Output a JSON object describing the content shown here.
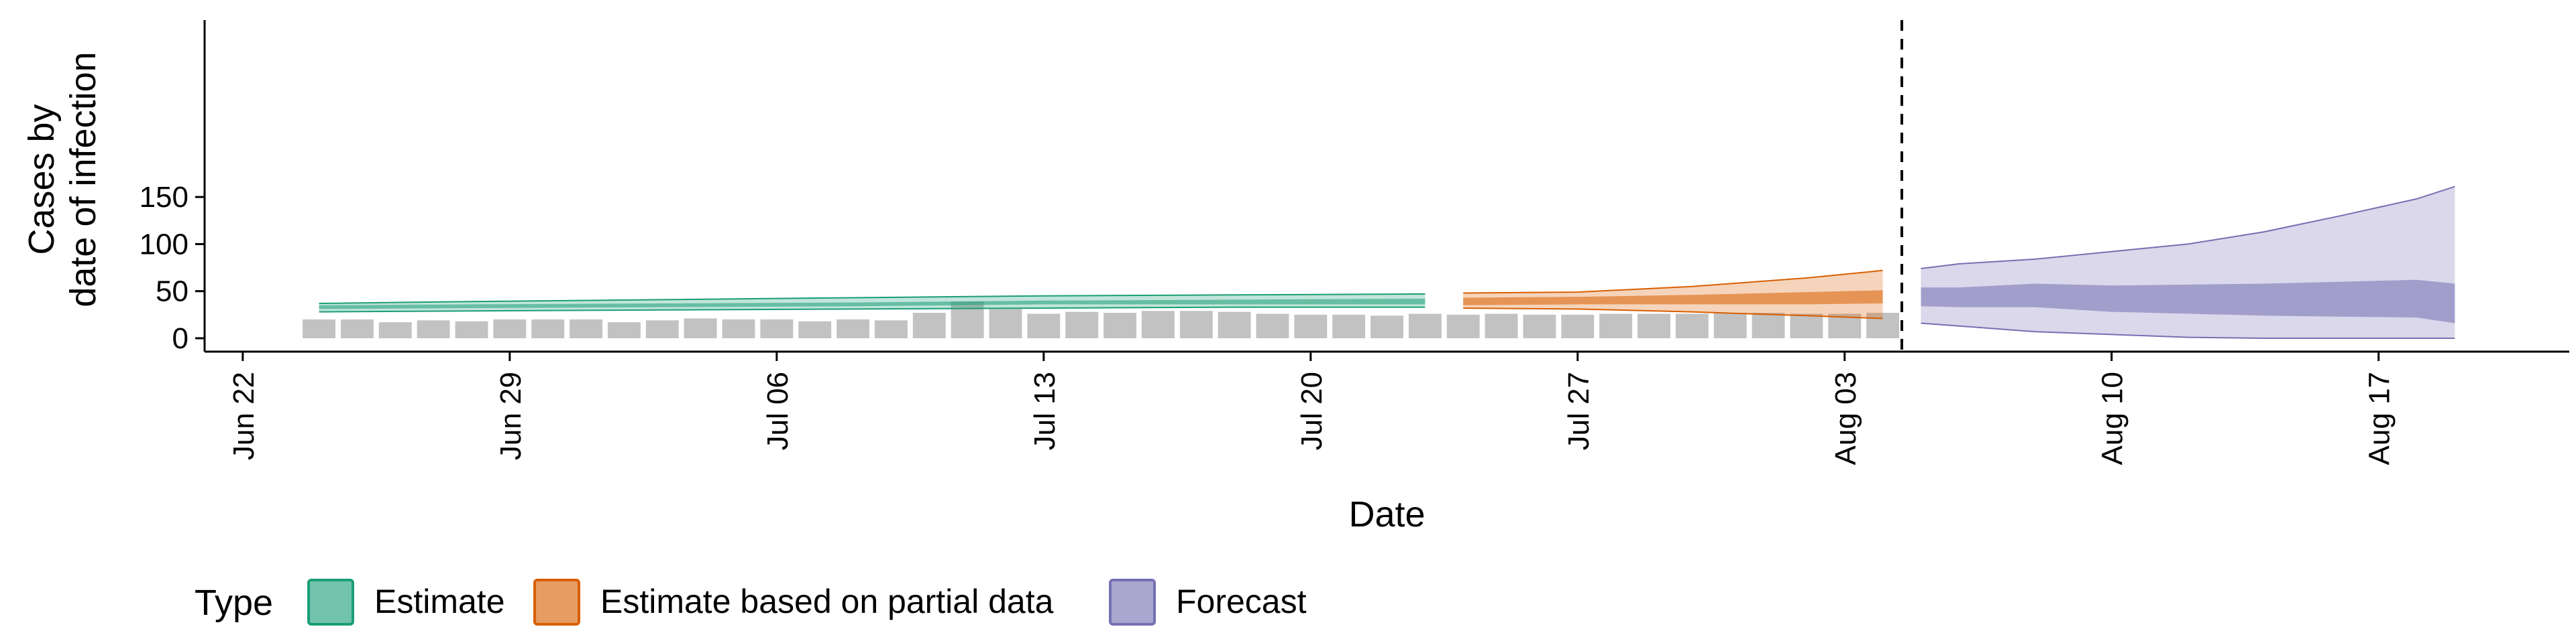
{
  "chart_data": {
    "type": "area",
    "title": "",
    "xlabel": "Date",
    "ylabel_lines": [
      "Cases by",
      "date of infection"
    ],
    "ylim": [
      0,
      165
    ],
    "yticks": [
      0,
      50,
      100,
      150
    ],
    "xticks": [
      "Jun 22",
      "Jun 29",
      "Jul 06",
      "Jul 13",
      "Jul 20",
      "Jul 27",
      "Aug 03",
      "Aug 10",
      "Aug 17"
    ],
    "xtick_dates": [
      "2020-06-22",
      "2020-06-29",
      "2020-07-06",
      "2020-07-13",
      "2020-07-20",
      "2020-07-27",
      "2020-08-03",
      "2020-08-10",
      "2020-08-17"
    ],
    "xlim": [
      "2020-06-21",
      "2020-08-22"
    ],
    "forecast_cutoff": "2020-08-05",
    "grid": false,
    "legend": {
      "title": "Type",
      "position": "bottom",
      "entries": [
        "Estimate",
        "Estimate based on partial data",
        "Forecast"
      ]
    },
    "colors": {
      "estimate": "#1b9e77",
      "partial": "#d95f02",
      "forecast": "#7570b3",
      "bars": "#bfbfbf",
      "cutoff_line": "#000000"
    },
    "observed_cases": {
      "dates": [
        "2020-06-24",
        "2020-06-25",
        "2020-06-26",
        "2020-06-27",
        "2020-06-28",
        "2020-06-29",
        "2020-06-30",
        "2020-07-01",
        "2020-07-02",
        "2020-07-03",
        "2020-07-04",
        "2020-07-05",
        "2020-07-06",
        "2020-07-07",
        "2020-07-08",
        "2020-07-09",
        "2020-07-10",
        "2020-07-11",
        "2020-07-12",
        "2020-07-13",
        "2020-07-14",
        "2020-07-15",
        "2020-07-16",
        "2020-07-17",
        "2020-07-18",
        "2020-07-19",
        "2020-07-20",
        "2020-07-21",
        "2020-07-22",
        "2020-07-23",
        "2020-07-24",
        "2020-07-25",
        "2020-07-26",
        "2020-07-27",
        "2020-07-28",
        "2020-07-29",
        "2020-07-30",
        "2020-07-31",
        "2020-08-01",
        "2020-08-02",
        "2020-08-03",
        "2020-08-04"
      ],
      "values": [
        20,
        20,
        17,
        19,
        18,
        20,
        20,
        20,
        17,
        19,
        21,
        20,
        20,
        18,
        20,
        19,
        27,
        39,
        31,
        26,
        28,
        27,
        29,
        29,
        28,
        26,
        25,
        25,
        24,
        26,
        25,
        26,
        25,
        25,
        26,
        26,
        26,
        27,
        27,
        26,
        26,
        27
      ]
    },
    "series": [
      {
        "name": "Estimate",
        "dates": [
          "2020-06-24",
          "2020-06-28",
          "2020-07-03",
          "2020-07-08",
          "2020-07-13",
          "2020-07-18",
          "2020-07-23"
        ],
        "median": [
          33,
          34,
          35,
          36,
          38,
          38,
          39
        ],
        "lower50": [
          31,
          32,
          33,
          34,
          36,
          36,
          36
        ],
        "upper50": [
          35,
          36,
          37,
          38,
          40,
          41,
          42
        ],
        "lower90": [
          28,
          29,
          30,
          31,
          32,
          33,
          33
        ],
        "upper90": [
          37,
          39,
          41,
          43,
          45,
          46,
          47
        ]
      },
      {
        "name": "Estimate based on partial data",
        "dates": [
          "2020-07-24",
          "2020-07-27",
          "2020-07-30",
          "2020-08-02",
          "2020-08-04"
        ],
        "median": [
          39,
          40,
          42,
          44,
          45
        ],
        "lower50": [
          35,
          36,
          36,
          36,
          37
        ],
        "upper50": [
          43,
          44,
          46,
          49,
          51
        ],
        "lower90": [
          32,
          31,
          28,
          24,
          21
        ],
        "upper90": [
          48,
          49,
          55,
          64,
          72
        ]
      },
      {
        "name": "Forecast",
        "dates": [
          "2020-08-05",
          "2020-08-06",
          "2020-08-08",
          "2020-08-10",
          "2020-08-12",
          "2020-08-14",
          "2020-08-16",
          "2020-08-18",
          "2020-08-19"
        ],
        "median": [
          44,
          43,
          45,
          43,
          41,
          41,
          41,
          42,
          37
        ],
        "lower50": [
          34,
          33,
          33,
          28,
          26,
          24,
          23,
          22,
          16
        ],
        "upper50": [
          54,
          54,
          58,
          56,
          57,
          58,
          60,
          62,
          58
        ],
        "lower90": [
          16,
          13,
          7,
          4,
          1,
          0,
          0,
          0,
          0
        ],
        "upper90": [
          74,
          79,
          84,
          92,
          100,
          113,
          130,
          148,
          161
        ]
      }
    ]
  }
}
